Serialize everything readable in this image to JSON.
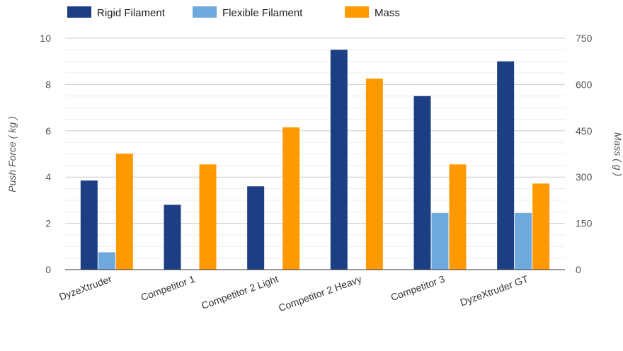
{
  "chart_data": {
    "type": "bar",
    "categories": [
      "DyzeXtruder",
      "Competitor 1",
      "Competitor 2 Light",
      "Competitor 2 Heavy",
      "Competitor 3",
      "DyzeXtruder GT"
    ],
    "series": [
      {
        "name": "Rigid Filament",
        "axis": "left",
        "color": "#1c3f84",
        "values": [
          3.85,
          2.8,
          3.6,
          9.5,
          7.5,
          9.0
        ]
      },
      {
        "name": "Flexible Filament",
        "axis": "left",
        "color": "#6fa8dc",
        "values": [
          0.75,
          0,
          0,
          0,
          2.45,
          2.45
        ]
      },
      {
        "name": "Mass",
        "axis": "right",
        "color": "#ff9900",
        "values": [
          376,
          341,
          461,
          619,
          341,
          279
        ]
      }
    ],
    "ylabel": "Push Force ( kg )",
    "y2label": "Mass ( g )",
    "ylim": [
      0,
      10
    ],
    "y2lim": [
      0,
      750
    ],
    "yticks": [
      "0",
      "2",
      "4",
      "6",
      "8",
      "10"
    ],
    "y2ticks": [
      "0",
      "150",
      "300",
      "450",
      "600",
      "750"
    ],
    "grid": true,
    "legend_position": "top-left"
  }
}
